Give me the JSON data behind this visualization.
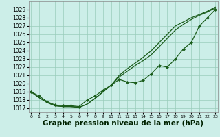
{
  "x": [
    0,
    1,
    2,
    3,
    4,
    5,
    6,
    7,
    8,
    9,
    10,
    11,
    12,
    13,
    14,
    15,
    16,
    17,
    18,
    19,
    20,
    21,
    22,
    23
  ],
  "line_markers": [
    1019.0,
    1018.5,
    1017.8,
    1017.4,
    1017.3,
    1017.3,
    1017.2,
    1018.0,
    1018.5,
    1019.2,
    1019.8,
    1020.5,
    1020.2,
    1020.1,
    1020.4,
    1021.2,
    1022.2,
    1022.0,
    1023.0,
    1024.2,
    1025.0,
    1027.0,
    1028.0,
    1029.0
  ],
  "line_high1": [
    1019.0,
    1018.3,
    1017.7,
    1017.3,
    1017.2,
    1017.2,
    1017.1,
    1017.5,
    1018.2,
    1019.0,
    1019.8,
    1020.8,
    1021.5,
    1022.2,
    1022.8,
    1023.5,
    1024.5,
    1025.5,
    1026.5,
    1027.2,
    1027.8,
    1028.3,
    1028.7,
    1029.2
  ],
  "line_high2": [
    1019.0,
    1018.3,
    1017.7,
    1017.3,
    1017.2,
    1017.2,
    1017.1,
    1017.5,
    1018.2,
    1019.0,
    1019.8,
    1021.0,
    1021.8,
    1022.5,
    1023.2,
    1024.0,
    1025.0,
    1026.0,
    1027.0,
    1027.5,
    1028.0,
    1028.4,
    1028.8,
    1029.3
  ],
  "ylim": [
    1016.5,
    1030.0
  ],
  "yticks": [
    1017,
    1018,
    1019,
    1020,
    1021,
    1022,
    1023,
    1024,
    1025,
    1026,
    1027,
    1028,
    1029
  ],
  "xlim": [
    -0.3,
    23.3
  ],
  "xticks": [
    0,
    1,
    2,
    3,
    4,
    5,
    6,
    7,
    8,
    9,
    10,
    11,
    12,
    13,
    14,
    15,
    16,
    17,
    18,
    19,
    20,
    21,
    22,
    23
  ],
  "xlabel": "Graphe pression niveau de la mer (hPa)",
  "bg_color": "#cceee8",
  "grid_color": "#99ccbb",
  "line_color": "#1a5c1a",
  "marker": "D",
  "marker_size": 2.0,
  "line_width": 0.9,
  "xlabel_fontsize": 7.5,
  "ytick_fontsize": 5.5,
  "xtick_fontsize": 4.5
}
